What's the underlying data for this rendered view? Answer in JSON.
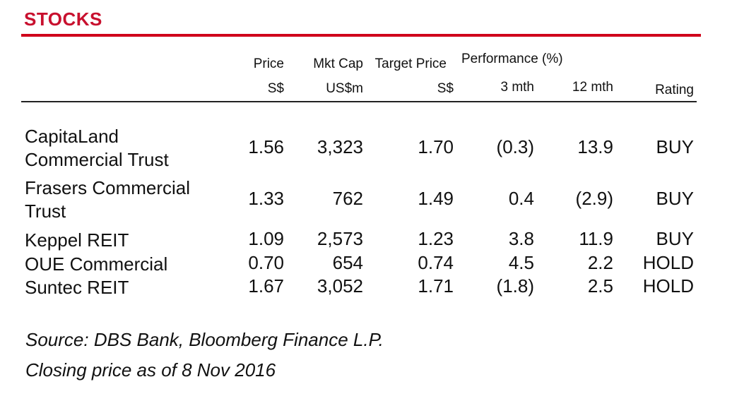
{
  "title": "STOCKS",
  "header": {
    "price": "Price",
    "price_unit": "S$",
    "mktcap": "Mkt Cap",
    "mktcap_unit": "US$m",
    "target": "Target Price",
    "target_unit": "S$",
    "performance": "Performance (%)",
    "perf_3m": "3 mth",
    "perf_12m": "12 mth",
    "rating": "Rating"
  },
  "rows": [
    {
      "name_line1": "CapitaLand",
      "name_line2": "Commercial Trust",
      "price": "1.56",
      "mktcap": "3,323",
      "target": "1.70",
      "p3m": "(0.3)",
      "p12m": "13.9",
      "rating": "BUY"
    },
    {
      "name_line1": "Frasers Commercial",
      "name_line2": "Trust",
      "price": "1.33",
      "mktcap": "762",
      "target": "1.49",
      "p3m": "0.4",
      "p12m": "(2.9)",
      "rating": "BUY"
    },
    {
      "name_line1": "Keppel REIT",
      "name_line2": "",
      "price": "1.09",
      "mktcap": "2,573",
      "target": "1.23",
      "p3m": "3.8",
      "p12m": "11.9",
      "rating": "BUY"
    },
    {
      "name_line1": "OUE Commercial",
      "name_line2": "",
      "price": "0.70",
      "mktcap": "654",
      "target": "0.74",
      "p3m": "4.5",
      "p12m": "2.2",
      "rating": "HOLD"
    },
    {
      "name_line1": "Suntec REIT",
      "name_line2": "",
      "price": "1.67",
      "mktcap": "3,052",
      "target": "1.71",
      "p3m": "(1.8)",
      "p12m": "2.5",
      "rating": "HOLD"
    }
  ],
  "notes": {
    "source": "Source: DBS Bank, Bloomberg Finance L.P.",
    "closing": "Closing price as of  8 Nov 2016"
  }
}
